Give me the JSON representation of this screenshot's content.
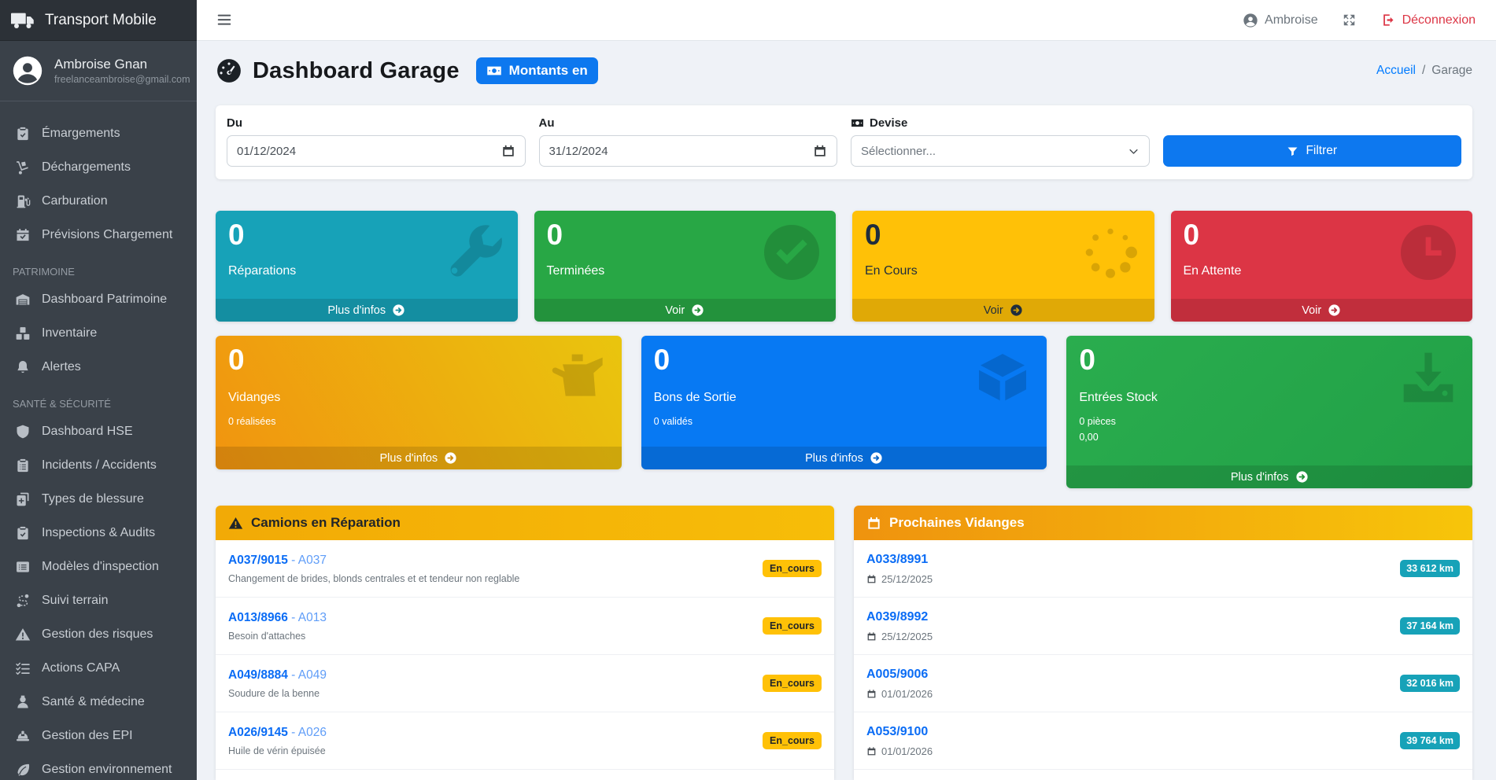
{
  "sidebar": {
    "brand": "Transport Mobile",
    "user": {
      "name": "Ambroise Gnan",
      "email": "freelanceambroise@gmail.com"
    },
    "menu": [
      {
        "type": "item",
        "label": "Émargements",
        "icon": "clipboard-check"
      },
      {
        "type": "item",
        "label": "Déchargements",
        "icon": "dolly"
      },
      {
        "type": "item",
        "label": "Carburation",
        "icon": "gas-pump"
      },
      {
        "type": "item",
        "label": "Prévisions Chargement",
        "icon": "calendar-check"
      },
      {
        "type": "section",
        "label": "PATRIMOINE"
      },
      {
        "type": "item",
        "label": "Dashboard Patrimoine",
        "icon": "warehouse"
      },
      {
        "type": "item",
        "label": "Inventaire",
        "icon": "cubes"
      },
      {
        "type": "item",
        "label": "Alertes",
        "icon": "bell"
      },
      {
        "type": "section",
        "label": "SANTÉ & SÉCURITÉ"
      },
      {
        "type": "item",
        "label": "Dashboard HSE",
        "icon": "shield"
      },
      {
        "type": "item",
        "label": "Incidents / Accidents",
        "icon": "clipboard-list"
      },
      {
        "type": "item",
        "label": "Types de blessure",
        "icon": "copy-plus"
      },
      {
        "type": "item",
        "label": "Inspections & Audits",
        "icon": "clipboard-check"
      },
      {
        "type": "item",
        "label": "Modèles d'inspection",
        "icon": "list-alt"
      },
      {
        "type": "item",
        "label": "Suivi terrain",
        "icon": "route"
      },
      {
        "type": "item",
        "label": "Gestion des risques",
        "icon": "warning"
      },
      {
        "type": "item",
        "label": "Actions CAPA",
        "icon": "tasks"
      },
      {
        "type": "item",
        "label": "Santé & médecine",
        "icon": "user-md"
      },
      {
        "type": "item",
        "label": "Gestion des EPI",
        "icon": "hard-hat"
      },
      {
        "type": "item",
        "label": "Gestion environnement",
        "icon": "leaf"
      }
    ]
  },
  "topbar": {
    "user": "Ambroise",
    "logout": "Déconnexion"
  },
  "header": {
    "title": "Dashboard Garage",
    "badge": "Montants en",
    "breadcrumb": {
      "home": "Accueil",
      "sep": "/",
      "current": "Garage"
    }
  },
  "filters": {
    "du": {
      "label": "Du",
      "value": "01/12/2024"
    },
    "au": {
      "label": "Au",
      "value": "31/12/2024"
    },
    "devise": {
      "label": "Devise",
      "placeholder": "Sélectionner..."
    },
    "submit": "Filtrer"
  },
  "cards": {
    "reparations": {
      "value": "0",
      "label": "Réparations",
      "footer": "Plus d'infos"
    },
    "terminees": {
      "value": "0",
      "label": "Terminées",
      "footer": "Voir"
    },
    "en_cours": {
      "value": "0",
      "label": "En Cours",
      "footer": "Voir"
    },
    "en_attente": {
      "value": "0",
      "label": "En Attente",
      "footer": "Voir"
    },
    "vidanges": {
      "value": "0",
      "label": "Vidanges",
      "sub": "0 réalisées",
      "footer": "Plus d'infos"
    },
    "bons_sortie": {
      "value": "0",
      "label": "Bons de Sortie",
      "sub": "0 validés",
      "footer": "Plus d'infos"
    },
    "entrees_stock": {
      "value": "0",
      "label": "Entrées Stock",
      "sub1": "0 pièces",
      "sub2": "0,00",
      "footer": "Plus d'infos"
    }
  },
  "repairs_panel": {
    "title": "Camions en Réparation",
    "dash": "-",
    "rows": [
      {
        "code": "A037/9015",
        "truck": "A037",
        "desc": "Changement de brides, blonds centrales et et tendeur non reglable",
        "status": "En_cours"
      },
      {
        "code": "A013/8966",
        "truck": "A013",
        "desc": "Besoin d'attaches",
        "status": "En_cours"
      },
      {
        "code": "A049/8884",
        "truck": "A049",
        "desc": "Soudure de la benne",
        "status": "En_cours"
      },
      {
        "code": "A026/9145",
        "truck": "A026",
        "desc": "Huile de vérin épuisée",
        "status": "En_cours"
      }
    ]
  },
  "vidanges_panel": {
    "title": "Prochaines Vidanges",
    "rows": [
      {
        "code": "A033/8991",
        "date": "25/12/2025",
        "km": "33 612 km"
      },
      {
        "code": "A039/8992",
        "date": "25/12/2025",
        "km": "37 164 km"
      },
      {
        "code": "A005/9006",
        "date": "01/01/2026",
        "km": "32 016 km"
      },
      {
        "code": "A053/9100",
        "date": "01/01/2026",
        "km": "39 764 km"
      }
    ]
  },
  "colors": {
    "primary": "#0d78ef",
    "info": "#17a2b8",
    "success": "#28a745",
    "warning": "#ffc107",
    "danger": "#dc3545",
    "gold_header": "#f2aa06",
    "orange_header": "#ef930e",
    "sidebar_bg": "#3a4149",
    "content_bg": "#eff2f7"
  }
}
